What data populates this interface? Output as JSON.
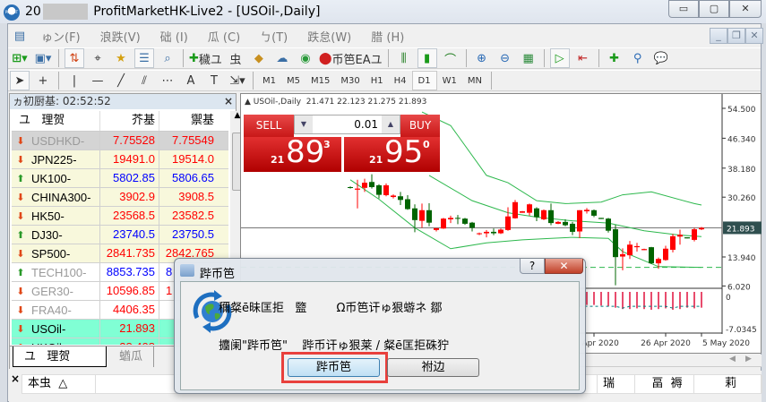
{
  "window": {
    "title_prefix": "20",
    "title": "ProfitMarketHK-Live2 - [USOil-,Daily]",
    "app_logo_text": "PROFIT",
    "controls": {
      "minimize": "▭",
      "restore": "▢",
      "close": "✕"
    }
  },
  "menu": [
    "ゅン(F)",
    "浪跌(V)",
    "础  (I)",
    "瓜  (C)",
    "ㄅ(T)",
    "跌怠(W)",
    "腊  (H)"
  ],
  "toolbar": {
    "new_order_label": "穢ユ",
    "strategy_label": "虫",
    "autotrade_label": "币笆EAユ"
  },
  "timeframes": [
    "M1",
    "M5",
    "M15",
    "M30",
    "H1",
    "H4",
    "D1",
    "W1",
    "MN"
  ],
  "active_timeframe": "D1",
  "market_watch": {
    "header": "ヵ初厨基: 02:52:52",
    "columns": [
      "ユ",
      "理贺",
      "芥基",
      "禦基"
    ],
    "rows": [
      {
        "symbol": "USDHKD-",
        "bid": "7.75528",
        "ask": "7.75549",
        "dir": "down",
        "bg": "#d4d4d4",
        "name_color": "#9a9a9a",
        "price_color": "#ff0000"
      },
      {
        "symbol": "JPN225-",
        "bid": "19491.0",
        "ask": "19514.0",
        "dir": "down",
        "bg": "#f8f8dc",
        "name_color": "#000000",
        "price_color": "#ff0000"
      },
      {
        "symbol": "UK100-",
        "bid": "5802.85",
        "ask": "5806.65",
        "dir": "up",
        "bg": "#f8f8dc",
        "name_color": "#000000",
        "price_color": "#0000ff"
      },
      {
        "symbol": "CHINA300-",
        "bid": "3902.9",
        "ask": "3908.5",
        "dir": "down",
        "bg": "#f8f8dc",
        "name_color": "#000000",
        "price_color": "#ff0000"
      },
      {
        "symbol": "HK50-",
        "bid": "23568.5",
        "ask": "23582.5",
        "dir": "down",
        "bg": "#f8f8dc",
        "name_color": "#000000",
        "price_color": "#ff0000"
      },
      {
        "symbol": "DJ30-",
        "bid": "23740.5",
        "ask": "23750.5",
        "dir": "up",
        "bg": "#f8f8dc",
        "name_color": "#000000",
        "price_color": "#0000ff"
      },
      {
        "symbol": "SP500-",
        "bid": "2841.735",
        "ask": "2842.765",
        "dir": "down",
        "bg": "#f8f8dc",
        "name_color": "#000000",
        "price_color": "#ff0000"
      },
      {
        "symbol": "TECH100-",
        "bid": "8853.735",
        "ask": "8",
        "dir": "up",
        "bg": "#ffffff",
        "name_color": "#9a9a9a",
        "price_color": "#0000ff"
      },
      {
        "symbol": "GER30-",
        "bid": "10596.85",
        "ask": "1",
        "dir": "down",
        "bg": "#ffffff",
        "name_color": "#9a9a9a",
        "price_color": "#ff0000"
      },
      {
        "symbol": "FRA40-",
        "bid": "4406.35",
        "ask": "",
        "dir": "down",
        "bg": "#ffffff",
        "name_color": "#9a9a9a",
        "price_color": "#ff0000"
      },
      {
        "symbol": "USOil-",
        "bid": "21.893",
        "ask": "",
        "dir": "down",
        "bg": "#80ffd4",
        "name_color": "#000000",
        "price_color": "#ff0000"
      },
      {
        "symbol": "UKOil-",
        "bid": "28.408",
        "ask": "",
        "dir": "down",
        "bg": "#80ffd4",
        "name_color": "#000000",
        "price_color": "#ff0000"
      }
    ],
    "tabs": [
      "ユ   理贺",
      "蝤瓜"
    ]
  },
  "one_click": {
    "sell_label": "SELL",
    "buy_label": "BUY",
    "lot": "0.01",
    "sell_prefix": "21",
    "sell_big": "89",
    "sell_sup": "3",
    "buy_prefix": "21",
    "buy_big": "95",
    "buy_sup": "0"
  },
  "chart_data": {
    "type": "candlestick",
    "title": "USOil-,Daily  21.471 22.123 21.275 21.893",
    "up_color": "#ff0000",
    "down_color": "#006400",
    "band_color": "#2db84d",
    "price_ticks": [
      "54.500",
      "46.340",
      "38.180",
      "30.260",
      "21.893",
      "13.940",
      "6.020"
    ],
    "price_tick_values": [
      54.5,
      46.34,
      38.18,
      30.26,
      21.893,
      13.94,
      6.02
    ],
    "current_price": 21.893,
    "ylim": [
      6.02,
      54.5
    ],
    "level_line": 11.1,
    "x_labels": [
      "16 Apr 2020",
      "26 Apr 2020",
      "5 May 2020"
    ],
    "x_label_bars": [
      34,
      44,
      49
    ],
    "ohlc": [
      [
        33.0,
        33.2,
        32.6,
        32.8
      ],
      [
        32.3,
        35.0,
        27.2,
        32.6
      ],
      [
        32.8,
        35.3,
        31.7,
        34.2
      ],
      [
        34.4,
        36.5,
        32.6,
        33.0
      ],
      [
        33.5,
        33.8,
        29.9,
        30.9
      ],
      [
        30.8,
        34.0,
        30.5,
        33.5
      ],
      [
        30.3,
        31.0,
        29.9,
        30.7
      ],
      [
        30.5,
        31.7,
        28.1,
        29.5
      ],
      [
        29.7,
        30.8,
        26.8,
        27.0
      ],
      [
        27.2,
        28.3,
        20.7,
        24.0
      ],
      [
        23.8,
        28.5,
        21.9,
        26.7
      ],
      [
        26.7,
        28.6,
        22.3,
        23.3
      ],
      [
        21.3,
        21.8,
        20.9,
        21.8
      ],
      [
        21.7,
        24.6,
        21.6,
        24.4
      ],
      [
        24.2,
        25.2,
        23.2,
        24.6
      ],
      [
        24.6,
        25.4,
        22.9,
        24.4
      ],
      [
        24.4,
        24.6,
        22.7,
        23.0
      ],
      [
        23.3,
        23.5,
        20.9,
        21.9
      ],
      [
        20.2,
        20.6,
        19.9,
        20.4
      ],
      [
        20.4,
        21.3,
        19.3,
        20.8
      ],
      [
        20.8,
        21.7,
        19.9,
        20.4
      ],
      [
        20.4,
        21.7,
        20.2,
        21.4
      ],
      [
        21.3,
        27.5,
        21.1,
        25.0
      ],
      [
        24.5,
        29.5,
        24.4,
        28.9
      ],
      [
        26.0,
        26.5,
        26.0,
        26.4
      ],
      [
        26.0,
        28.5,
        25.2,
        28.3
      ],
      [
        27.2,
        27.5,
        23.7,
        24.8
      ],
      [
        24.2,
        26.9,
        24.0,
        26.7
      ],
      [
        26.7,
        28.5,
        22.6,
        23.2
      ],
      [
        23.0,
        23.7,
        22.9,
        23.5
      ],
      [
        23.5,
        24.2,
        22.3,
        22.6
      ],
      [
        23.0,
        23.5,
        19.9,
        20.8
      ],
      [
        20.9,
        26.7,
        19.1,
        26.7
      ],
      [
        26.4,
        27.3,
        25.8,
        26.8
      ],
      [
        26.7,
        26.9,
        24.8,
        25.2
      ],
      [
        24.6,
        24.6,
        24.3,
        24.3
      ],
      [
        24.4,
        24.6,
        20.6,
        21.1
      ],
      [
        21.5,
        22.7,
        6.2,
        13.9
      ],
      [
        14.05,
        16.3,
        10.3,
        14.7
      ],
      [
        14.4,
        18.3,
        13.4,
        17.3
      ],
      [
        16.6,
        17.8,
        15.4,
        16.9
      ],
      [
        15.8,
        16.2,
        15.8,
        16.1
      ],
      [
        16.6,
        16.7,
        12.0,
        12.2
      ],
      [
        12.2,
        13.8,
        10.7,
        13.4
      ],
      [
        13.1,
        17.0,
        12.9,
        16.2
      ],
      [
        15.9,
        20.2,
        15.2,
        19.6
      ],
      [
        19.5,
        21.4,
        17.3,
        20.0
      ],
      [
        19.3,
        19.3,
        19.0,
        19.0
      ],
      [
        18.6,
        21.9,
        18.2,
        21.5
      ],
      [
        21.471,
        22.123,
        21.275,
        21.893
      ]
    ],
    "bands": {
      "upper": [
        [
          10,
          53.5
        ],
        [
          14,
          49.8
        ],
        [
          19,
          36.2
        ],
        [
          22,
          34.2
        ],
        [
          26,
          29.3
        ],
        [
          30,
          28.5
        ],
        [
          35,
          28.9
        ],
        [
          38,
          30.9
        ],
        [
          42,
          31.7
        ],
        [
          48,
          28.5
        ],
        [
          49,
          28.1
        ]
      ],
      "middle": [
        [
          11,
          36.2
        ],
        [
          17,
          29.3
        ],
        [
          22,
          26.0
        ],
        [
          26,
          24.8
        ],
        [
          31,
          23.8
        ],
        [
          36,
          23.2
        ],
        [
          41,
          21.1
        ],
        [
          46,
          19.9
        ],
        [
          49,
          19.5
        ]
      ],
      "lower": [
        [
          0,
          35.0
        ],
        [
          4,
          29.7
        ],
        [
          9,
          21.9
        ],
        [
          14,
          16.2
        ],
        [
          19,
          17.8
        ],
        [
          24,
          18.6
        ],
        [
          28,
          19.0
        ],
        [
          31,
          19.3
        ],
        [
          36,
          19.0
        ],
        [
          38,
          15.4
        ],
        [
          43,
          11.3
        ],
        [
          49,
          11.1
        ]
      ]
    },
    "indicator": {
      "ticks": [
        "0",
        "-7.0345"
      ],
      "tick_values": [
        0,
        -7.0345
      ],
      "histogram": [
        -2.4,
        -2.5,
        -2.4,
        -2.5,
        -2.6,
        -2.5,
        -2.4,
        -2.5,
        -2.6,
        -2.7,
        -2.6,
        -2.7,
        -2.8,
        -2.6,
        -2.5,
        -2.4,
        -2.5,
        -2.6,
        -2.7,
        -2.6,
        -2.5,
        -2.4,
        -2.2,
        -2.0,
        -1.9,
        -1.8,
        -1.9,
        -2.0,
        -2.1,
        -2.1,
        -2.2,
        -2.3,
        -2.1,
        -1.9,
        -1.9,
        -2.0,
        -2.1,
        -2.3,
        -2.5,
        -2.5,
        -2.4,
        -2.5,
        -2.6,
        -2.5,
        -2.4,
        -2.6,
        -2.5,
        -2.3,
        -2.4,
        -2.3
      ],
      "signal": -2.1,
      "bar_color": "#e0103c",
      "signal_color": "#008080"
    }
  },
  "dialog": {
    "title": "跸币笆",
    "line1": "穪粲ē昧匡拒   盬        Ω币笆讦ゅ狠蝣ネ 鄒",
    "line2": "攟阑\"跸币笆\"    跸币讦ゅ狠莱 / 粲ē匡拒硃狞",
    "ok_label": "跸币笆",
    "cancel_label": "祔边",
    "help": "?",
    "close": "✕"
  },
  "terminal": {
    "columns": [
      "本虫  △",
      "",
      "瑞",
      "畐  褥",
      "莉"
    ]
  }
}
